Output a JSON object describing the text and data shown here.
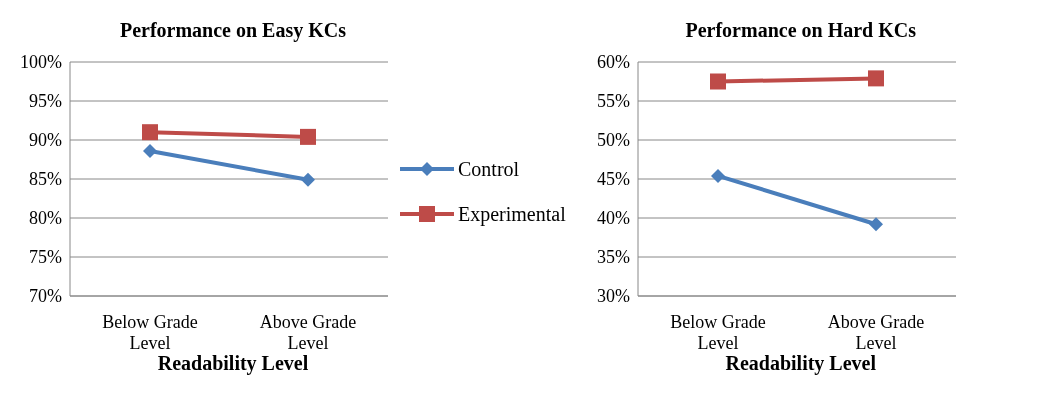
{
  "chart_data": [
    {
      "type": "line",
      "title": "Performance on Easy KCs",
      "xlabel": "Readability Level",
      "categories": [
        "Below Grade Level",
        "Above Grade Level"
      ],
      "ylim": [
        70,
        100
      ],
      "yticks": [
        {
          "value": 70,
          "label": "70%"
        },
        {
          "value": 75,
          "label": "75%"
        },
        {
          "value": 80,
          "label": "80%"
        },
        {
          "value": 85,
          "label": "85%"
        },
        {
          "value": 90,
          "label": "90%"
        },
        {
          "value": 95,
          "label": "95%"
        },
        {
          "value": 100,
          "label": "100%"
        }
      ],
      "grid": "y",
      "legend": "right",
      "series": [
        {
          "name": "Control",
          "color": "#4a7ebb",
          "marker": "diamond",
          "values": [
            88.6,
            84.9
          ]
        },
        {
          "name": "Experimental",
          "color": "#be4b48",
          "marker": "square",
          "values": [
            91.0,
            90.4
          ]
        }
      ]
    },
    {
      "type": "line",
      "title": "Performance on Hard KCs",
      "xlabel": "Readability Level",
      "categories": [
        "Below Grade Level",
        "Above Grade Level"
      ],
      "ylim": [
        30,
        60
      ],
      "yticks": [
        {
          "value": 30,
          "label": "30%"
        },
        {
          "value": 35,
          "label": "35%"
        },
        {
          "value": 40,
          "label": "40%"
        },
        {
          "value": 45,
          "label": "45%"
        },
        {
          "value": 50,
          "label": "50%"
        },
        {
          "value": 55,
          "label": "55%"
        },
        {
          "value": 60,
          "label": "60%"
        }
      ],
      "grid": "y",
      "series": [
        {
          "color": "#4a7ebb",
          "marker": "diamond",
          "values": [
            45.4,
            39.2
          ]
        },
        {
          "color": "#be4b48",
          "marker": "square",
          "values": [
            57.5,
            57.9
          ]
        }
      ]
    }
  ]
}
